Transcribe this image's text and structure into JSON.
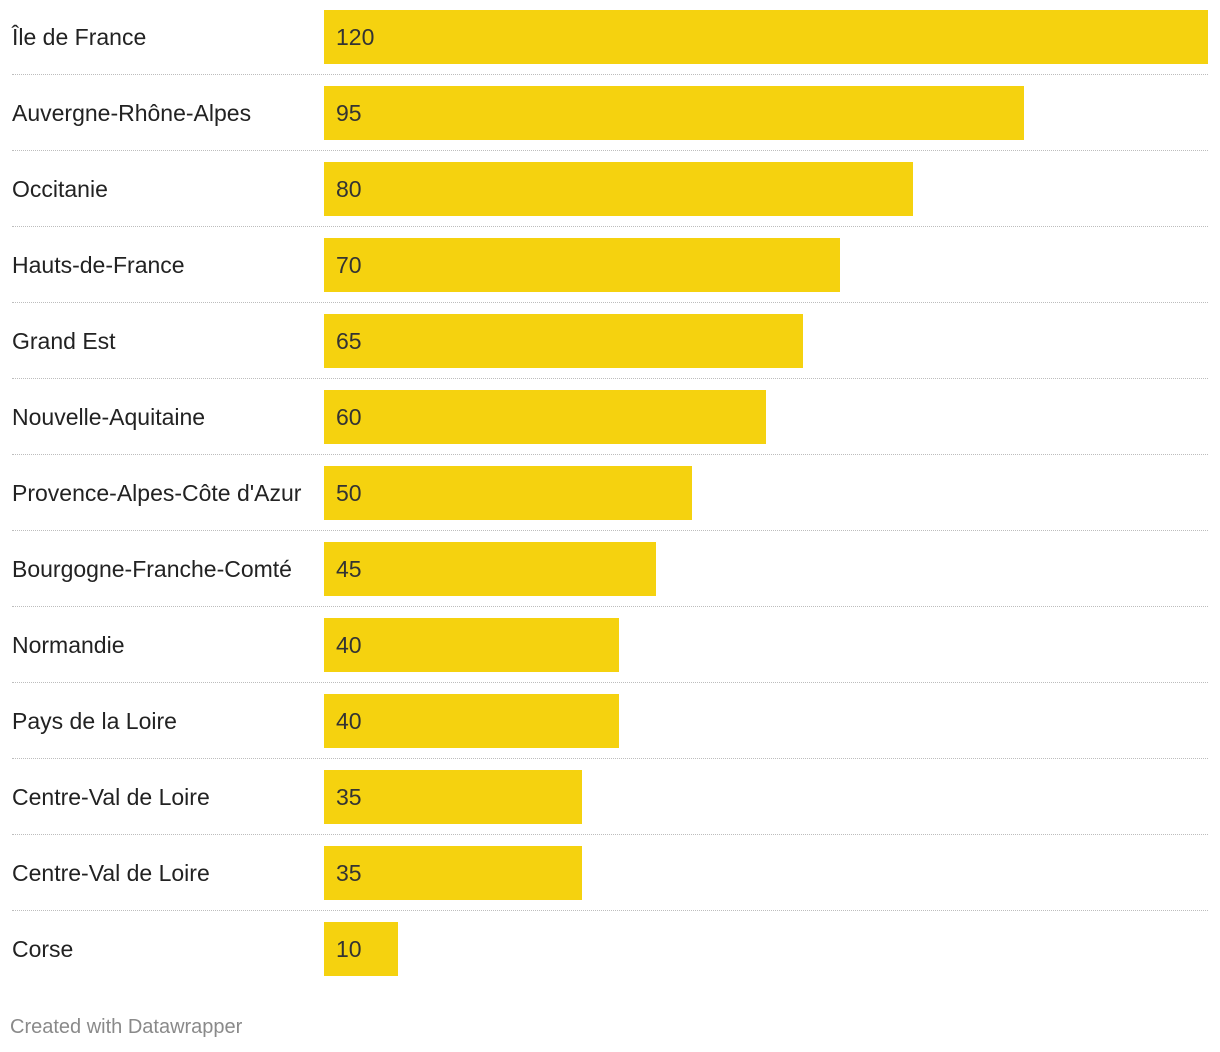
{
  "chart_data": {
    "type": "bar",
    "orientation": "horizontal",
    "categories": [
      "Île de France",
      "Auvergne-Rhône-Alpes",
      "Occitanie",
      "Hauts-de-France",
      "Grand Est",
      "Nouvelle-Aquitaine",
      "Provence-Alpes-Côte d'Azur",
      "Bourgogne-Franche-Comté",
      "Normandie",
      "Pays de la Loire",
      "Centre-Val de Loire",
      "Centre-Val de Loire",
      "Corse"
    ],
    "values": [
      120,
      95,
      80,
      70,
      65,
      60,
      50,
      45,
      40,
      40,
      35,
      35,
      10
    ],
    "xlim": [
      0,
      120
    ],
    "grid": false,
    "legend": "none",
    "bar_color": "#f5d20f"
  },
  "footer": {
    "credit": "Created with Datawrapper"
  }
}
